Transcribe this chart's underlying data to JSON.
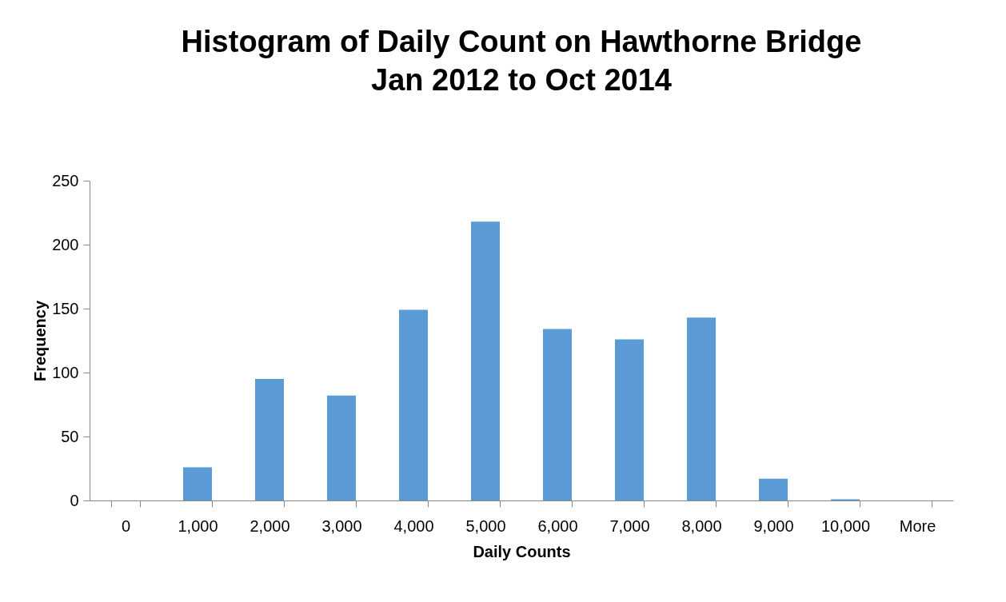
{
  "chart_data": {
    "type": "bar",
    "title": "Histogram of Daily Count on Hawthorne Bridge\nJan 2012 to Oct 2014",
    "xlabel": "Daily Counts",
    "ylabel": "Frequency",
    "categories": [
      "0",
      "1,000",
      "2,000",
      "3,000",
      "4,000",
      "5,000",
      "6,000",
      "7,000",
      "8,000",
      "9,000",
      "10,000",
      "More"
    ],
    "series": [
      {
        "color": "#5b9bd5",
        "values": [
          0,
          26,
          95,
          82,
          149,
          218,
          134,
          126,
          143,
          17,
          1,
          0
        ]
      }
    ],
    "ylim": [
      0,
      250
    ],
    "yticks": [
      0,
      50,
      100,
      150,
      200,
      250
    ],
    "grid": false
  }
}
